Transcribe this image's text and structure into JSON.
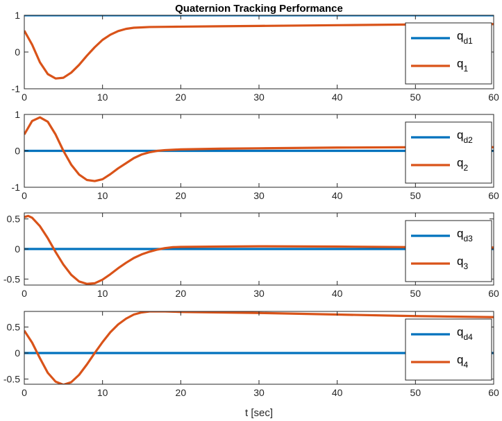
{
  "chart_data": [
    {
      "type": "line",
      "title": "Quaternion Tracking Performance",
      "xlabel": "",
      "ylabel": "",
      "xlim": [
        0,
        60
      ],
      "ylim": [
        -1,
        1
      ],
      "xticks": [
        0,
        10,
        20,
        30,
        40,
        50,
        60
      ],
      "yticks": [
        -1,
        0,
        1
      ],
      "legend_position": "top-right",
      "series": [
        {
          "name": "q_d1",
          "label_base": "q",
          "label_sub": "d1",
          "color": "#0072BD",
          "x": [
            0,
            60
          ],
          "y": [
            1,
            1
          ]
        },
        {
          "name": "q_1",
          "label_base": "q",
          "label_sub": "1",
          "color": "#D95319",
          "x": [
            0,
            1,
            2,
            3,
            4,
            5,
            6,
            7,
            8,
            9,
            10,
            11,
            12,
            13,
            14,
            15,
            16,
            18,
            20,
            25,
            30,
            40,
            50,
            60
          ],
          "y": [
            0.58,
            0.2,
            -0.28,
            -0.6,
            -0.72,
            -0.7,
            -0.56,
            -0.35,
            -0.1,
            0.13,
            0.33,
            0.47,
            0.57,
            0.63,
            0.66,
            0.67,
            0.68,
            0.685,
            0.69,
            0.7,
            0.71,
            0.73,
            0.75,
            0.76
          ]
        }
      ]
    },
    {
      "type": "line",
      "title": "",
      "xlabel": "",
      "ylabel": "",
      "xlim": [
        0,
        60
      ],
      "ylim": [
        -1,
        1
      ],
      "xticks": [
        0,
        10,
        20,
        30,
        40,
        50,
        60
      ],
      "yticks": [
        -1,
        0,
        1
      ],
      "legend_position": "top-right",
      "series": [
        {
          "name": "q_d2",
          "label_base": "q",
          "label_sub": "d2",
          "color": "#0072BD",
          "x": [
            0,
            60
          ],
          "y": [
            0,
            0
          ]
        },
        {
          "name": "q_2",
          "label_base": "q",
          "label_sub": "2",
          "color": "#D95319",
          "x": [
            0,
            1,
            2,
            3,
            4,
            5,
            6,
            7,
            8,
            9,
            10,
            11,
            12,
            13,
            14,
            15,
            16,
            17,
            18,
            20,
            25,
            30,
            40,
            50,
            60
          ],
          "y": [
            0.45,
            0.82,
            0.92,
            0.8,
            0.45,
            0.0,
            -0.38,
            -0.65,
            -0.8,
            -0.83,
            -0.78,
            -0.64,
            -0.48,
            -0.34,
            -0.2,
            -0.1,
            -0.04,
            0.0,
            0.02,
            0.04,
            0.06,
            0.07,
            0.09,
            0.1,
            0.1
          ]
        }
      ]
    },
    {
      "type": "line",
      "title": "",
      "xlabel": "",
      "ylabel": "",
      "xlim": [
        0,
        60
      ],
      "ylim": [
        -0.6,
        0.6
      ],
      "xticks": [
        0,
        10,
        20,
        30,
        40,
        50,
        60
      ],
      "yticks": [
        -0.5,
        0,
        0.5
      ],
      "legend_position": "top-right",
      "series": [
        {
          "name": "q_d3",
          "label_base": "q",
          "label_sub": "d3",
          "color": "#0072BD",
          "x": [
            0,
            60
          ],
          "y": [
            0,
            0
          ]
        },
        {
          "name": "q_3",
          "label_base": "q",
          "label_sub": "3",
          "color": "#D95319",
          "x": [
            0,
            0.5,
            1,
            2,
            3,
            4,
            5,
            6,
            7,
            8,
            9,
            10,
            11,
            12,
            13,
            14,
            15,
            16,
            17,
            18,
            19,
            20,
            25,
            30,
            40,
            50,
            60
          ],
          "y": [
            0.53,
            0.55,
            0.52,
            0.38,
            0.18,
            -0.05,
            -0.26,
            -0.43,
            -0.54,
            -0.58,
            -0.57,
            -0.51,
            -0.42,
            -0.32,
            -0.23,
            -0.15,
            -0.09,
            -0.045,
            -0.01,
            0.015,
            0.03,
            0.035,
            0.04,
            0.045,
            0.04,
            0.03,
            0.025
          ]
        }
      ]
    },
    {
      "type": "line",
      "title": "",
      "xlabel": "t [sec]",
      "ylabel": "",
      "xlim": [
        0,
        60
      ],
      "ylim": [
        -0.6,
        0.8
      ],
      "xticks": [
        0,
        10,
        20,
        30,
        40,
        50,
        60
      ],
      "yticks": [
        -0.5,
        0,
        0.5
      ],
      "legend_position": "top-right",
      "series": [
        {
          "name": "q_d4",
          "label_base": "q",
          "label_sub": "d4",
          "color": "#0072BD",
          "x": [
            0,
            60
          ],
          "y": [
            0,
            0
          ]
        },
        {
          "name": "q_4",
          "label_base": "q",
          "label_sub": "4",
          "color": "#D95319",
          "x": [
            0,
            1,
            2,
            3,
            4,
            5,
            6,
            7,
            8,
            9,
            10,
            11,
            12,
            13,
            14,
            15,
            16,
            17,
            18,
            20,
            25,
            30,
            40,
            50,
            60
          ],
          "y": [
            0.43,
            0.2,
            -0.1,
            -0.38,
            -0.55,
            -0.61,
            -0.56,
            -0.42,
            -0.22,
            0.0,
            0.21,
            0.4,
            0.55,
            0.66,
            0.74,
            0.78,
            0.8,
            0.8,
            0.8,
            0.79,
            0.78,
            0.77,
            0.74,
            0.71,
            0.69
          ]
        }
      ]
    }
  ]
}
